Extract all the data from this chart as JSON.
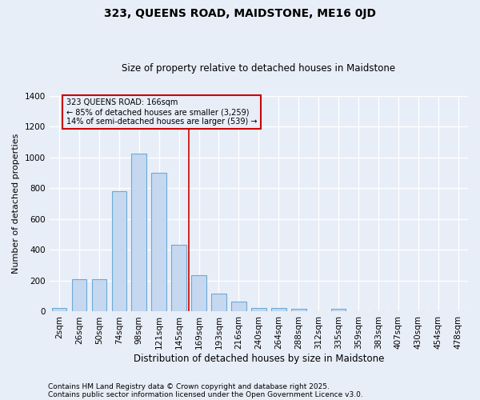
{
  "title": "323, QUEENS ROAD, MAIDSTONE, ME16 0JD",
  "subtitle": "Size of property relative to detached houses in Maidstone",
  "xlabel": "Distribution of detached houses by size in Maidstone",
  "ylabel": "Number of detached properties",
  "footnote1": "Contains HM Land Registry data © Crown copyright and database right 2025.",
  "footnote2": "Contains public sector information licensed under the Open Government Licence v3.0.",
  "categories": [
    "2sqm",
    "26sqm",
    "50sqm",
    "74sqm",
    "98sqm",
    "121sqm",
    "145sqm",
    "169sqm",
    "193sqm",
    "216sqm",
    "240sqm",
    "264sqm",
    "288sqm",
    "312sqm",
    "335sqm",
    "359sqm",
    "383sqm",
    "407sqm",
    "430sqm",
    "454sqm",
    "478sqm"
  ],
  "values": [
    25,
    210,
    210,
    780,
    1025,
    900,
    435,
    235,
    115,
    65,
    25,
    25,
    20,
    0,
    20,
    0,
    0,
    0,
    0,
    0,
    0
  ],
  "bar_color": "#c5d8f0",
  "bar_edge_color": "#6aaad4",
  "bg_color": "#e8eef8",
  "grid_color": "#ffffff",
  "vline_x_idx": 7,
  "vline_color": "#cc0000",
  "annotation_text": "323 QUEENS ROAD: 166sqm\n← 85% of detached houses are smaller (3,259)\n14% of semi-detached houses are larger (539) →",
  "annotation_box_color": "#cc0000",
  "ylim": [
    0,
    1400
  ],
  "yticks": [
    0,
    200,
    400,
    600,
    800,
    1000,
    1200,
    1400
  ],
  "title_fontsize": 10,
  "subtitle_fontsize": 8.5,
  "ylabel_fontsize": 8,
  "xlabel_fontsize": 8.5,
  "tick_fontsize": 7.5,
  "footnote_fontsize": 6.5,
  "bar_width": 0.75
}
